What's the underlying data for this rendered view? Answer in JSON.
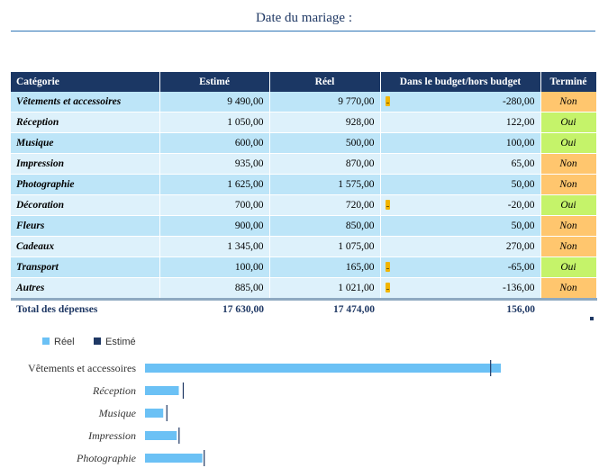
{
  "page": {
    "title": "Date du mariage :"
  },
  "table": {
    "headers": {
      "category": "Catégorie",
      "estimated": "Estimé",
      "actual": "Réel",
      "difference": "Dans le budget/hors budget",
      "done": "Terminé"
    },
    "rows": [
      {
        "category": "Vêtements et accessoires",
        "estimated": "9 490,00",
        "actual": "9 770,00",
        "difference": "-280,00",
        "over_budget": true,
        "done": "Non"
      },
      {
        "category": "Réception",
        "estimated": "1 050,00",
        "actual": "928,00",
        "difference": "122,00",
        "over_budget": false,
        "done": "Oui"
      },
      {
        "category": "Musique",
        "estimated": "600,00",
        "actual": "500,00",
        "difference": "100,00",
        "over_budget": false,
        "done": "Oui"
      },
      {
        "category": "Impression",
        "estimated": "935,00",
        "actual": "870,00",
        "difference": "65,00",
        "over_budget": false,
        "done": "Non"
      },
      {
        "category": "Photographie",
        "estimated": "1 625,00",
        "actual": "1 575,00",
        "difference": "50,00",
        "over_budget": false,
        "done": "Non"
      },
      {
        "category": "Décoration",
        "estimated": "700,00",
        "actual": "720,00",
        "difference": "-20,00",
        "over_budget": true,
        "done": "Oui"
      },
      {
        "category": "Fleurs",
        "estimated": "900,00",
        "actual": "850,00",
        "difference": "50,00",
        "over_budget": false,
        "done": "Non"
      },
      {
        "category": "Cadeaux",
        "estimated": "1 345,00",
        "actual": "1 075,00",
        "difference": "270,00",
        "over_budget": false,
        "done": "Non"
      },
      {
        "category": "Transport",
        "estimated": "100,00",
        "actual": "165,00",
        "difference": "-65,00",
        "over_budget": true,
        "done": "Oui"
      },
      {
        "category": "Autres",
        "estimated": "885,00",
        "actual": "1 021,00",
        "difference": "-136,00",
        "over_budget": true,
        "done": "Non"
      }
    ],
    "total": {
      "label": "Total des dépenses",
      "estimated": "17 630,00",
      "actual": "17 474,00",
      "difference": "156,00"
    }
  },
  "colors": {
    "header": "#1B3764",
    "row_dark": "#BDE5F8",
    "row_light": "#DDF1FB",
    "status_non": "#FFC66E",
    "status_oui": "#C5F36A",
    "bar_actual": "#6BC1F5",
    "bar_estimated": "#1F3864"
  },
  "chart_data": {
    "type": "bar",
    "orientation": "horizontal",
    "categories": [
      "Vêtements et accessoires",
      "Réception",
      "Musique",
      "Impression",
      "Photographie"
    ],
    "series": [
      {
        "name": "Réel",
        "values": [
          9770,
          928,
          500,
          870,
          1575
        ]
      },
      {
        "name": "Estimé",
        "values": [
          9490,
          1050,
          600,
          935,
          1625
        ]
      }
    ],
    "legend": "top-left",
    "grid": false
  }
}
